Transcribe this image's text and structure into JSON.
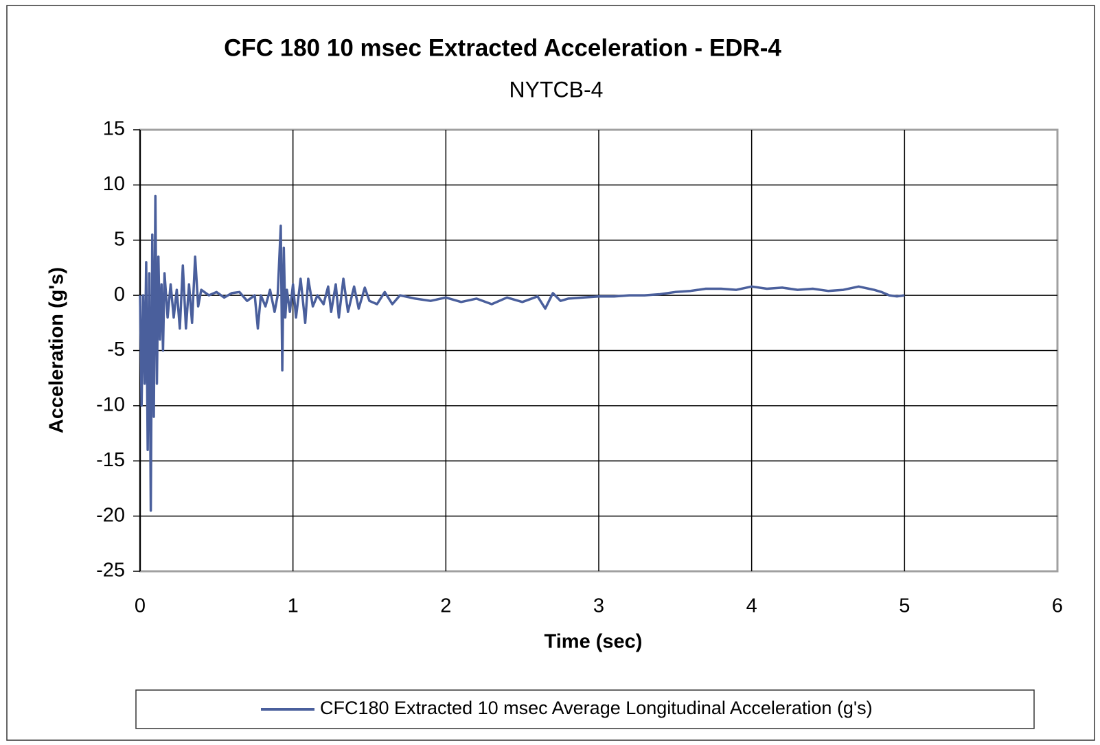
{
  "chart_data": {
    "type": "line",
    "title": "CFC 180 10 msec Extracted Acceleration - EDR-4",
    "subtitle": "NYTCB-4",
    "x_label": "Time (sec)",
    "y_label": "Acceleration (g's)",
    "x": [
      0,
      0.01,
      0.02,
      0.03,
      0.04,
      0.05,
      0.06,
      0.07,
      0.08,
      0.09,
      0.1,
      0.11,
      0.12,
      0.13,
      0.14,
      0.15,
      0.16,
      0.18,
      0.2,
      0.22,
      0.24,
      0.26,
      0.28,
      0.3,
      0.32,
      0.34,
      0.36,
      0.38,
      0.4,
      0.45,
      0.5,
      0.55,
      0.6,
      0.65,
      0.7,
      0.75,
      0.77,
      0.79,
      0.82,
      0.85,
      0.88,
      0.9,
      0.92,
      0.93,
      0.94,
      0.95,
      0.96,
      0.98,
      1.0,
      1.02,
      1.05,
      1.08,
      1.1,
      1.13,
      1.16,
      1.2,
      1.23,
      1.25,
      1.28,
      1.3,
      1.33,
      1.36,
      1.4,
      1.43,
      1.47,
      1.5,
      1.55,
      1.6,
      1.65,
      1.7,
      1.8,
      1.9,
      2.0,
      2.1,
      2.2,
      2.3,
      2.4,
      2.5,
      2.6,
      2.65,
      2.7,
      2.75,
      2.8,
      2.9,
      3.0,
      3.1,
      3.2,
      3.3,
      3.4,
      3.5,
      3.6,
      3.7,
      3.8,
      3.9,
      4.0,
      4.1,
      4.2,
      4.3,
      4.4,
      4.5,
      4.6,
      4.7,
      4.8,
      4.85,
      4.9,
      4.95,
      5.0
    ],
    "series": [
      {
        "name": "CFC180 Extracted 10 msec Average Longitudinal Acceleration (g's)",
        "color": "#4a5f9c",
        "values": [
          0,
          -10,
          0,
          -8,
          3,
          -14,
          2,
          -19.5,
          5.5,
          -11,
          9,
          -8,
          3.5,
          -4,
          1,
          -5,
          2,
          -2,
          1,
          -2,
          0.5,
          -3,
          2.7,
          -3,
          1,
          -2.5,
          3.5,
          -1,
          0.5,
          0,
          0.3,
          -0.2,
          0.2,
          0.3,
          -0.5,
          0,
          -3,
          0,
          -1,
          0.5,
          -1.5,
          0,
          6.3,
          -6.8,
          4.3,
          -2,
          0.5,
          -1.5,
          1,
          -2,
          1.5,
          -2.5,
          1.5,
          -1,
          0,
          -0.8,
          0.8,
          -1.5,
          1,
          -2,
          1.5,
          -1.5,
          0.8,
          -1.2,
          0.7,
          -0.5,
          -0.8,
          0.3,
          -0.8,
          0,
          -0.3,
          -0.5,
          -0.2,
          -0.6,
          -0.3,
          -0.8,
          -0.2,
          -0.6,
          -0.1,
          -1.2,
          0.2,
          -0.5,
          -0.3,
          -0.2,
          -0.1,
          -0.1,
          0,
          0,
          0.1,
          0.3,
          0.4,
          0.6,
          0.6,
          0.5,
          0.8,
          0.6,
          0.7,
          0.5,
          0.6,
          0.4,
          0.5,
          0.8,
          0.5,
          0.3,
          0,
          -0.1,
          0
        ]
      }
    ],
    "xlim": [
      0,
      6
    ],
    "xticks": [
      0,
      1,
      2,
      3,
      4,
      5,
      6
    ],
    "ylim": [
      -25,
      15
    ],
    "yticks": [
      -25,
      -20,
      -15,
      -10,
      -5,
      0,
      5,
      10,
      15
    ],
    "grid": true,
    "legend": "bottom"
  }
}
